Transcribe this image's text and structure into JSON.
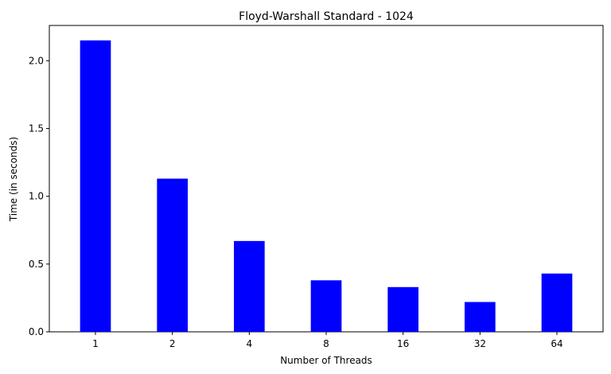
{
  "chart_data": {
    "type": "bar",
    "title": "Floyd-Warshall Standard - 1024",
    "xlabel": "Number of Threads",
    "ylabel": "Time (in seconds)",
    "categories": [
      "1",
      "2",
      "4",
      "8",
      "16",
      "32",
      "64"
    ],
    "values": [
      2.15,
      1.13,
      0.67,
      0.38,
      0.33,
      0.22,
      0.43
    ],
    "ylim": [
      0,
      2.26
    ],
    "yticks": [
      "0.0",
      "0.5",
      "1.0",
      "1.5",
      "2.0"
    ],
    "bar_color": "#0000ff",
    "grid": false
  }
}
